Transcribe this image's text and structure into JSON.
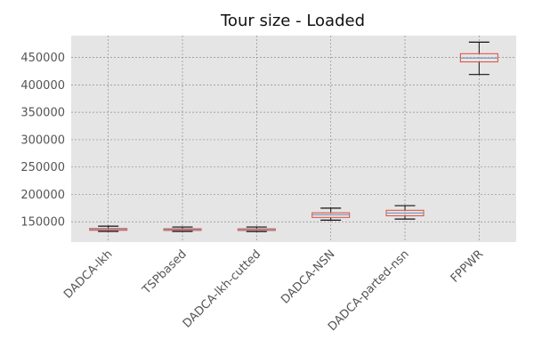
{
  "chart_data": {
    "type": "box",
    "title": "Tour size - Loaded",
    "xlabel": "",
    "ylabel": "",
    "categories": [
      "DADCA-lkh",
      "TSPbased",
      "DADCA-lkh-cutted",
      "DADCA-NSN",
      "DADCA-parted-nsn",
      "FPPWR"
    ],
    "ylim": [
      113000,
      490000
    ],
    "yticks": [
      150000,
      200000,
      250000,
      300000,
      350000,
      400000,
      450000
    ],
    "ytick_labels": [
      "150000",
      "200000",
      "250000",
      "300000",
      "350000",
      "400000",
      "450000"
    ],
    "grid": true,
    "boxes": [
      {
        "category": "DADCA-lkh",
        "whisker_low": 132500,
        "q1": 134500,
        "median": 136000,
        "q3": 137800,
        "whisker_high": 142000
      },
      {
        "category": "TSPbased",
        "whisker_low": 132500,
        "q1": 134300,
        "median": 135600,
        "q3": 137300,
        "whisker_high": 140500
      },
      {
        "category": "DADCA-lkh-cutted",
        "whisker_low": 132200,
        "q1": 134200,
        "median": 135300,
        "q3": 137200,
        "whisker_high": 140500
      },
      {
        "category": "DADCA-NSN",
        "whisker_low": 153000,
        "q1": 158000,
        "median": 163000,
        "q3": 166500,
        "whisker_high": 175000
      },
      {
        "category": "DADCA-parted-nsn",
        "whisker_low": 155000,
        "q1": 161000,
        "median": 166000,
        "q3": 171000,
        "whisker_high": 179500
      },
      {
        "category": "FPPWR",
        "whisker_low": 419000,
        "q1": 442000,
        "median": 449000,
        "q3": 457000,
        "whisker_high": 478000
      }
    ],
    "colors": {
      "plot_background": "#e5e5e5",
      "grid": "#8f8f8f",
      "box": "#e24a33",
      "median": "#7b9bc8",
      "whisker": "#111111",
      "spine": "#ffffff"
    }
  }
}
